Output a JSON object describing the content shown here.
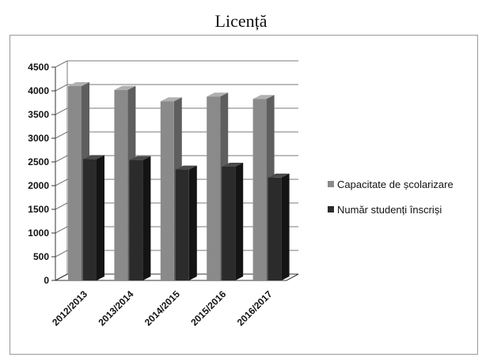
{
  "chart_data": {
    "type": "bar",
    "title": "Licență",
    "categories": [
      "2012/2013",
      "2013/2014",
      "2014/2015",
      "2015/2016",
      "2016/2017"
    ],
    "series": [
      {
        "name": "Capacitate de școlarizare",
        "values": [
          4100,
          4020,
          3780,
          3880,
          3830
        ]
      },
      {
        "name": "Număr studenți înscriși",
        "values": [
          2560,
          2540,
          2340,
          2400,
          2170
        ]
      }
    ],
    "yticks": [
      0,
      500,
      1000,
      1500,
      2000,
      2500,
      3000,
      3500,
      4000,
      4500
    ],
    "ylim": [
      0,
      4500
    ],
    "xlabel": "",
    "ylabel": "",
    "grid": true,
    "legend_position": "right",
    "colors": {
      "series": [
        "#8a8a8a",
        "#2b2b2b"
      ],
      "series_side": [
        "#5e5e5e",
        "#141414"
      ],
      "series_top": [
        "#b0b0b0",
        "#4a4a4a"
      ],
      "grid": "#7a7a7a",
      "axis": "#333333"
    }
  }
}
